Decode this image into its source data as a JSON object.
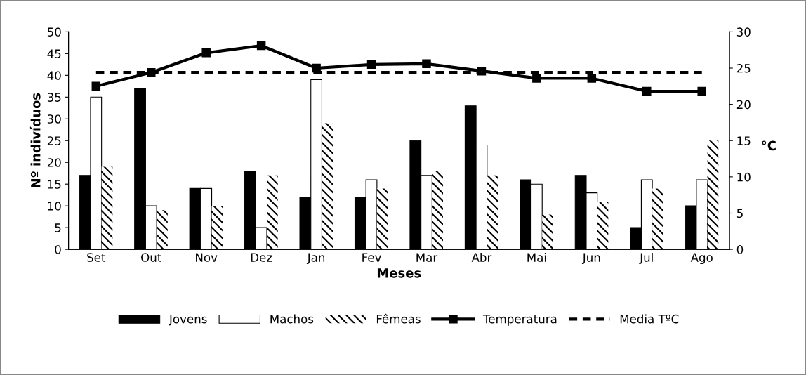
{
  "chart_data": {
    "type": "bar",
    "xlabel": "Meses",
    "ylabel": "Nº indivíduos",
    "y2label": "°C",
    "categories": [
      "Set",
      "Out",
      "Nov",
      "Dez",
      "Jan",
      "Fev",
      "Mar",
      "Abr",
      "Mai",
      "Jun",
      "Jul",
      "Ago"
    ],
    "series": [
      {
        "name": "Jovens",
        "color": "#000000",
        "values": [
          17,
          37,
          14,
          18,
          12,
          12,
          25,
          33,
          16,
          17,
          5,
          10
        ]
      },
      {
        "name": "Machos",
        "color": "#ffffff",
        "values": [
          35,
          10,
          14,
          5,
          39,
          16,
          17,
          24,
          15,
          13,
          16,
          16
        ]
      },
      {
        "name": "Fêmeas",
        "color": "#000000",
        "values": [
          19,
          9,
          10,
          17,
          29,
          14,
          18,
          17,
          8,
          11,
          14,
          25
        ]
      },
      {
        "name": "Temperatura",
        "type": "line",
        "axis": "y2",
        "color": "#000000",
        "marker": "square",
        "line_style": "solid",
        "values": [
          22.5,
          24.4,
          27.1,
          28.1,
          25.0,
          25.5,
          25.6,
          24.6,
          23.6,
          23.6,
          21.8,
          21.8
        ]
      },
      {
        "name": "Media TºC",
        "type": "line",
        "axis": "y2",
        "color": "#000000",
        "marker": "none",
        "line_style": "dashed",
        "values": [
          24.4,
          24.4,
          24.4,
          24.4,
          24.4,
          24.4,
          24.4,
          24.4,
          24.4,
          24.4,
          24.4,
          24.4
        ]
      }
    ],
    "ylim": [
      0,
      50
    ],
    "yticks": [
      0,
      5,
      10,
      15,
      20,
      25,
      30,
      35,
      40,
      45,
      50
    ],
    "y2lim": [
      0,
      30
    ],
    "y2ticks": [
      0,
      5,
      10,
      15,
      20,
      25,
      30
    ],
    "grid": false,
    "legend": "bottom"
  }
}
